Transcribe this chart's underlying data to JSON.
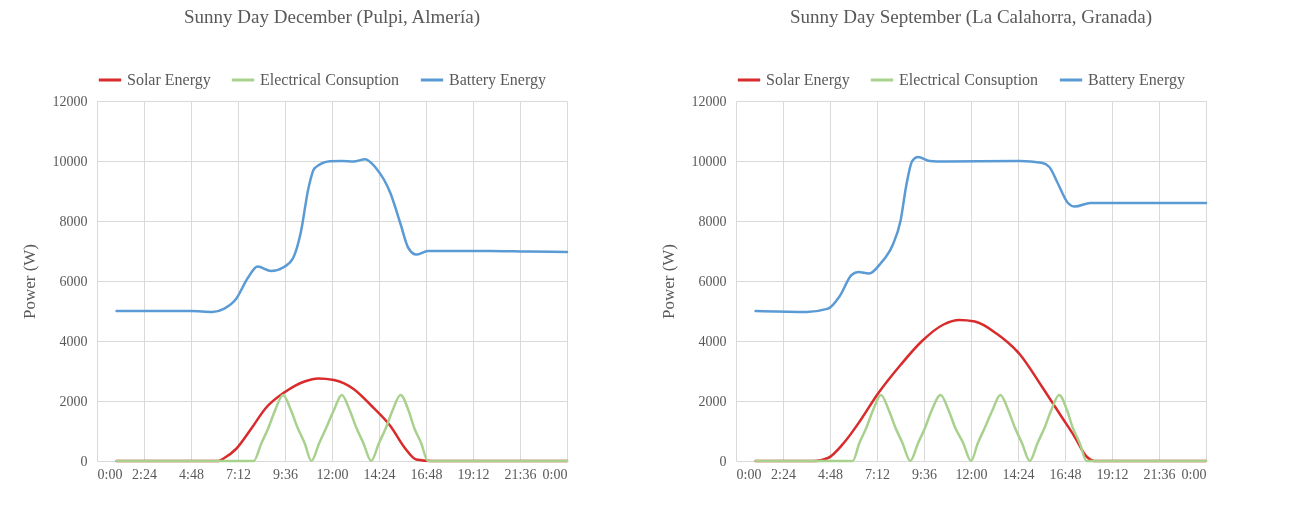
{
  "chart_data": [
    {
      "type": "line",
      "title": "Sunny Day December (Pulpi, Almería)",
      "ylabel": "Power (W)",
      "legend": "top",
      "grid": true,
      "xlim": [
        0,
        24
      ],
      "xticks": [
        {
          "value": 0,
          "label": "0:00"
        },
        {
          "value": 2.4,
          "label": "2:24"
        },
        {
          "value": 4.8,
          "label": "4:48"
        },
        {
          "value": 7.2,
          "label": "7:12"
        },
        {
          "value": 9.6,
          "label": "9:36"
        },
        {
          "value": 12,
          "label": "12:00"
        },
        {
          "value": 14.4,
          "label": "14:24"
        },
        {
          "value": 16.8,
          "label": "16:48"
        },
        {
          "value": 19.2,
          "label": "19:12"
        },
        {
          "value": 21.6,
          "label": "21:36"
        },
        {
          "value": 24,
          "label": "0:00"
        }
      ],
      "ylim": [
        0,
        12000
      ],
      "yticks": [
        0,
        2000,
        4000,
        6000,
        8000,
        10000,
        12000
      ],
      "series": [
        {
          "name": "Solar Energy",
          "color": "#d92b2b",
          "x": [
            1,
            4.8,
            6.2,
            6.5,
            7.1,
            7.9,
            8.6,
            9.6,
            10.6,
            11.3,
            12.1,
            13.1,
            14.0,
            15.0,
            15.7,
            16.3,
            17.1,
            24
          ],
          "values": [
            0,
            0,
            0,
            100,
            400,
            1100,
            1750,
            2300,
            2650,
            2750,
            2700,
            2400,
            1850,
            1150,
            450,
            50,
            0,
            0
          ]
        },
        {
          "name": "Electrical Consuption",
          "color": "#a9d18e",
          "x": [
            1,
            8.0,
            8.4,
            8.75,
            9.1,
            9.5,
            9.9,
            10.25,
            10.6,
            10.95,
            11.35,
            11.7,
            12.1,
            12.5,
            12.9,
            13.25,
            13.6,
            14.0,
            14.4,
            14.75,
            15.1,
            15.5,
            15.9,
            16.2,
            16.55,
            16.9,
            24
          ],
          "values": [
            0,
            0,
            600,
            1100,
            1700,
            2200,
            1700,
            1100,
            600,
            0,
            600,
            1100,
            1700,
            2200,
            1700,
            1100,
            600,
            0,
            600,
            1100,
            1700,
            2200,
            1700,
            1100,
            600,
            0,
            0
          ]
        },
        {
          "name": "Battery Energy",
          "color": "#5b9bd5",
          "x": [
            1,
            4.8,
            5.9,
            6.5,
            7.1,
            7.7,
            8.2,
            8.9,
            9.5,
            10.0,
            10.4,
            10.8,
            11.1,
            11.9,
            12.5,
            13.1,
            13.7,
            14.2,
            15.0,
            15.5,
            15.9,
            16.3,
            16.9,
            20.1,
            22.0,
            24
          ],
          "values": [
            5000,
            5000,
            4970,
            5080,
            5400,
            6100,
            6480,
            6330,
            6450,
            6750,
            7600,
            9100,
            9750,
            9990,
            10000,
            9980,
            10060,
            9800,
            8900,
            7900,
            7100,
            6880,
            7000,
            7000,
            6980,
            6970
          ]
        }
      ]
    },
    {
      "type": "line",
      "title": "Sunny Day September (La Calahorra, Granada)",
      "ylabel": "Power (W)",
      "legend": "top",
      "grid": true,
      "xlim": [
        0,
        24
      ],
      "xticks": [
        {
          "value": 0,
          "label": "0:00"
        },
        {
          "value": 2.4,
          "label": "2:24"
        },
        {
          "value": 4.8,
          "label": "4:48"
        },
        {
          "value": 7.2,
          "label": "7:12"
        },
        {
          "value": 9.6,
          "label": "9:36"
        },
        {
          "value": 12,
          "label": "12:00"
        },
        {
          "value": 14.4,
          "label": "14:24"
        },
        {
          "value": 16.8,
          "label": "16:48"
        },
        {
          "value": 19.2,
          "label": "19:12"
        },
        {
          "value": 21.6,
          "label": "21:36"
        },
        {
          "value": 24,
          "label": "0:00"
        }
      ],
      "ylim": [
        0,
        12000
      ],
      "yticks": [
        0,
        2000,
        4000,
        6000,
        8000,
        10000,
        12000
      ],
      "series": [
        {
          "name": "Solar Energy",
          "color": "#d92b2b",
          "x": [
            1,
            4.0,
            4.7,
            5.5,
            6.4,
            7.2,
            8.4,
            9.5,
            10.6,
            11.4,
            12.2,
            13.3,
            14.5,
            15.6,
            16.6,
            17.3,
            17.9,
            18.3,
            24
          ],
          "values": [
            0,
            0,
            100,
            600,
            1400,
            2200,
            3200,
            4000,
            4550,
            4700,
            4650,
            4250,
            3550,
            2500,
            1500,
            800,
            150,
            0,
            0
          ]
        },
        {
          "name": "Electrical Consuption",
          "color": "#a9d18e",
          "x": [
            1,
            5.96,
            6.3,
            6.65,
            7.0,
            7.4,
            7.8,
            8.15,
            8.5,
            8.9,
            9.3,
            9.65,
            10.0,
            10.45,
            10.85,
            11.2,
            11.6,
            12.0,
            12.35,
            12.7,
            13.1,
            13.5,
            13.9,
            14.25,
            14.6,
            15.0,
            15.4,
            15.75,
            16.1,
            16.5,
            16.9,
            17.2,
            17.55,
            17.9,
            24
          ],
          "values": [
            0,
            0,
            600,
            1100,
            1700,
            2200,
            1700,
            1100,
            600,
            0,
            600,
            1100,
            1700,
            2200,
            1700,
            1100,
            600,
            0,
            600,
            1100,
            1700,
            2200,
            1700,
            1100,
            600,
            0,
            600,
            1100,
            1700,
            2200,
            1700,
            1100,
            600,
            0,
            0
          ]
        },
        {
          "name": "Battery Energy",
          "color": "#5b9bd5",
          "x": [
            1,
            3.6,
            4.7,
            5.3,
            5.9,
            6.25,
            6.8,
            7.4,
            8.0,
            8.4,
            8.7,
            9.0,
            9.3,
            9.9,
            10.6,
            14.5,
            15.6,
            16.0,
            16.4,
            16.95,
            17.3,
            18.1,
            24
          ],
          "values": [
            5000,
            4970,
            5080,
            5500,
            6200,
            6300,
            6250,
            6600,
            7200,
            8000,
            9200,
            10000,
            10130,
            10000,
            9980,
            10000,
            9940,
            9800,
            9300,
            8600,
            8480,
            8600,
            8600
          ]
        }
      ]
    }
  ]
}
